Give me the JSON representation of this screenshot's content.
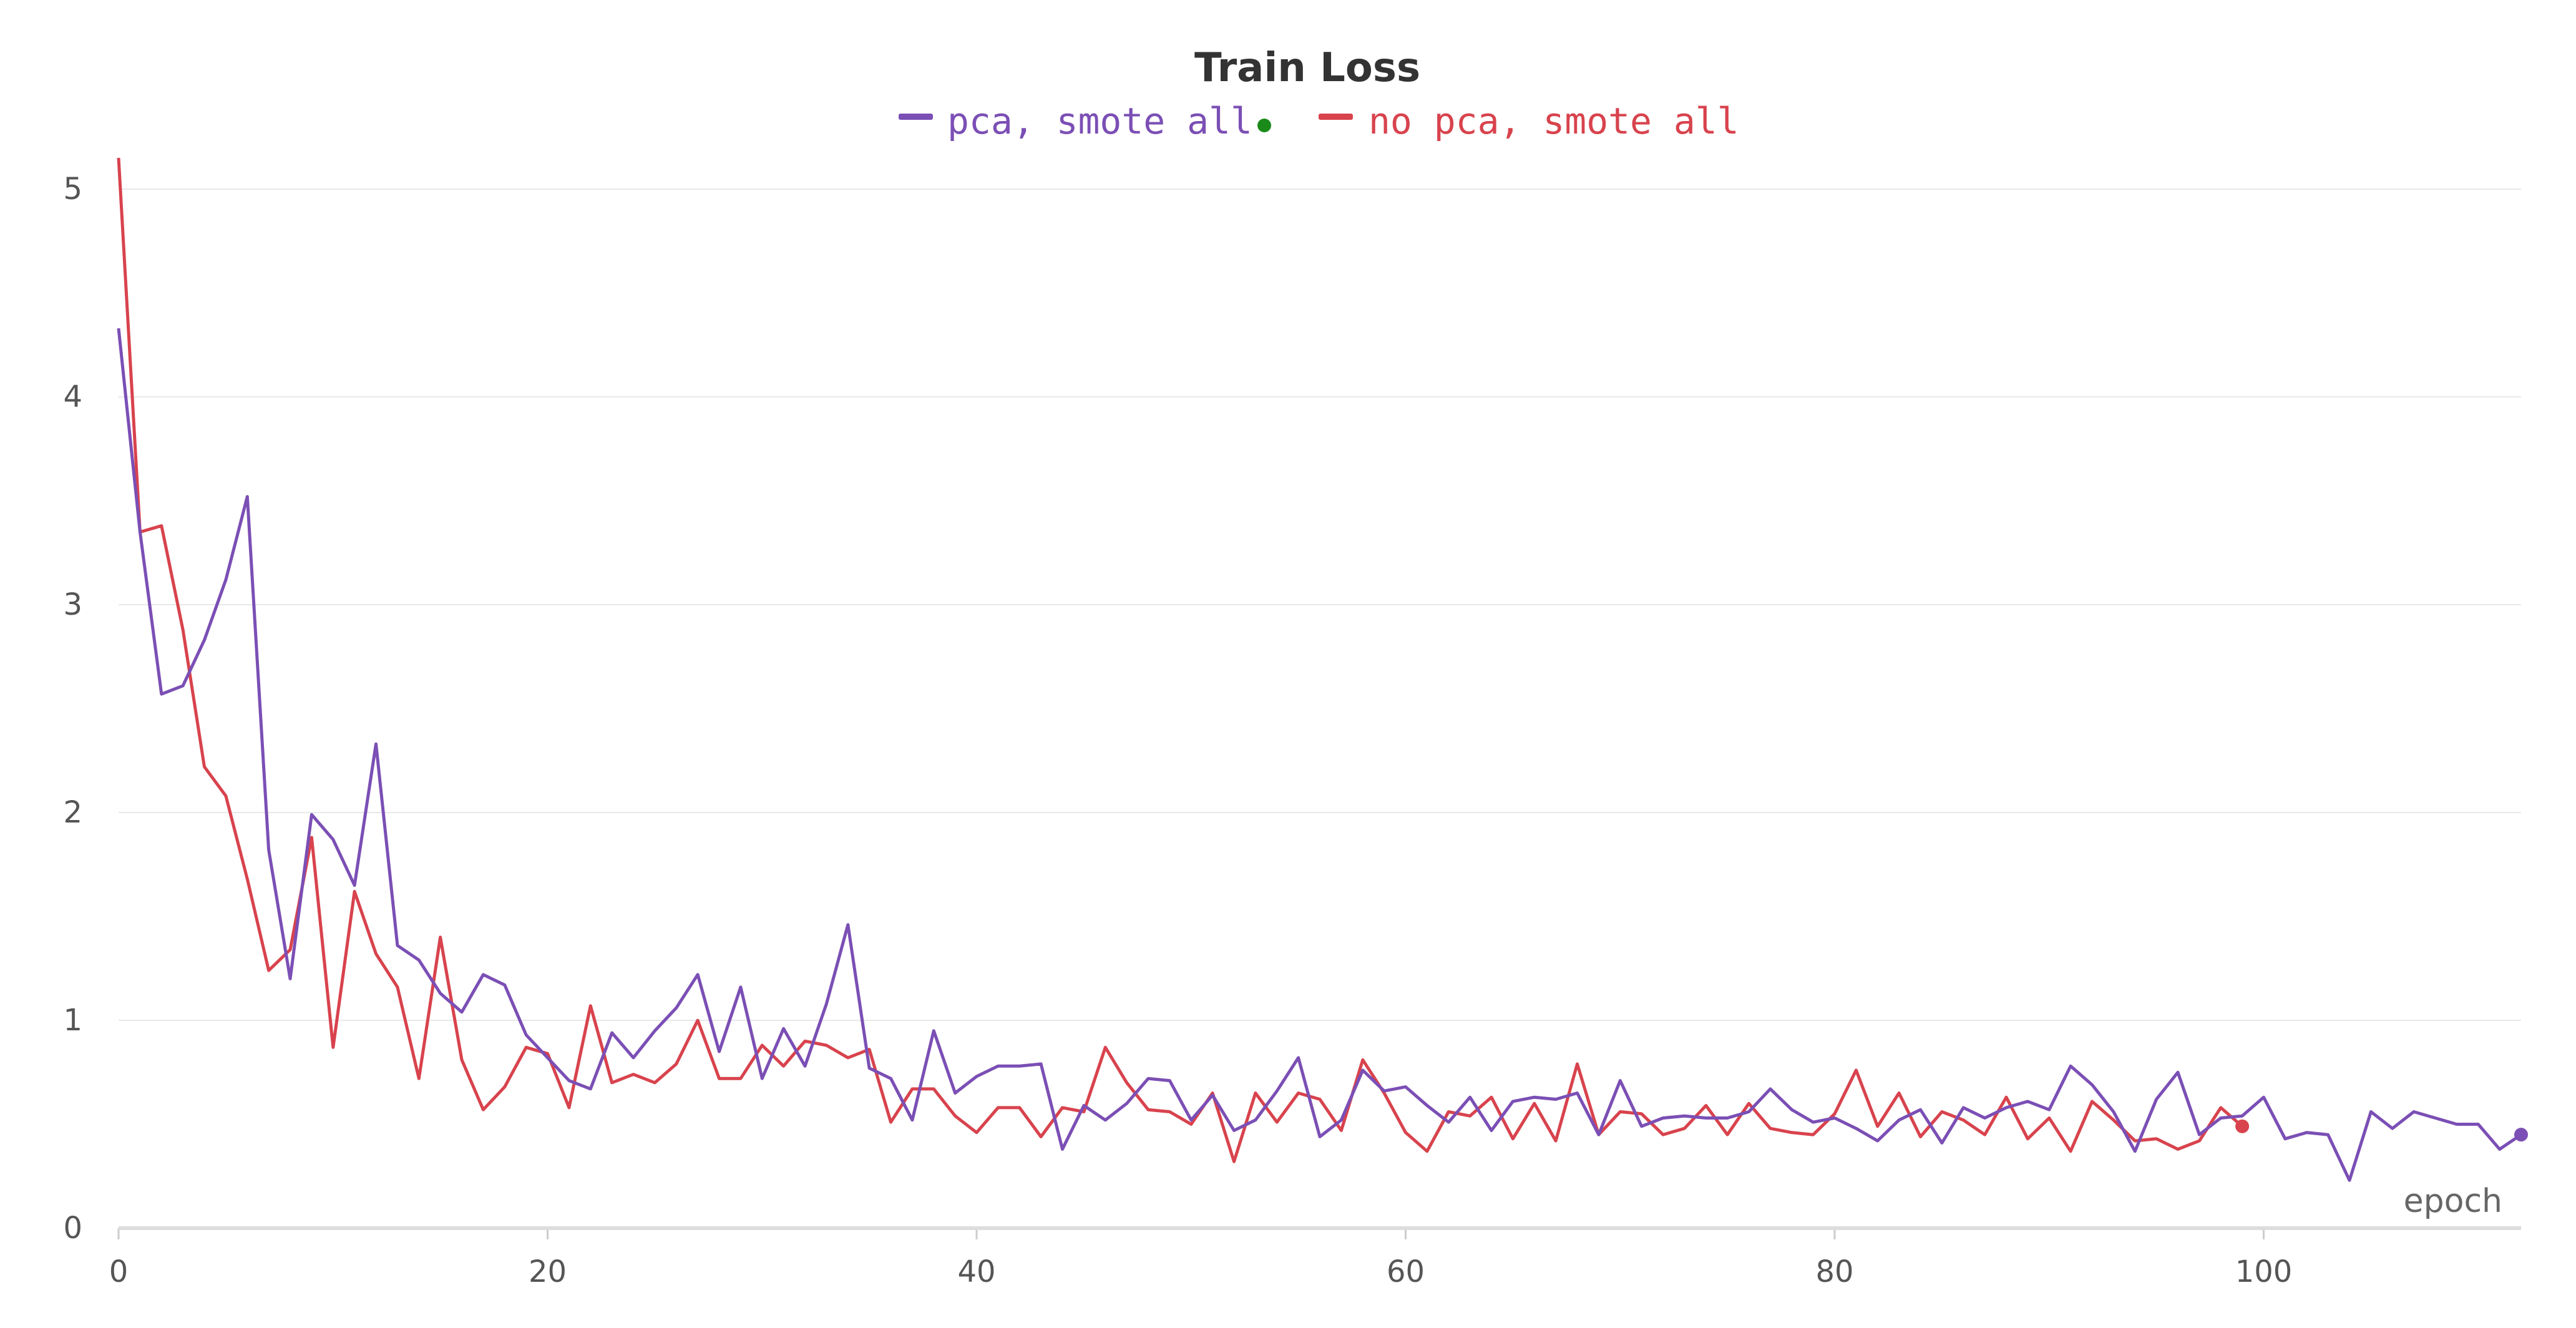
{
  "chart_data": {
    "type": "line",
    "title": "Train Loss",
    "xlabel": "epoch",
    "ylabel": "",
    "xlim": [
      0,
      112
    ],
    "ylim": [
      0,
      5.2
    ],
    "xticks": [
      0,
      20,
      40,
      60,
      80,
      100
    ],
    "yticks": [
      0,
      1,
      2,
      3,
      4,
      5
    ],
    "grid": true,
    "legend_position": "top-center",
    "legend_marker_color": "#1a8a1a",
    "series": [
      {
        "name": "pca, smote all",
        "color": "#7b4fb5",
        "x": [
          0,
          1,
          2,
          3,
          4,
          5,
          6,
          7,
          8,
          9,
          10,
          11,
          12,
          13,
          14,
          15,
          16,
          17,
          18,
          19,
          20,
          21,
          22,
          23,
          24,
          25,
          26,
          27,
          28,
          29,
          30,
          31,
          32,
          33,
          34,
          35,
          36,
          37,
          38,
          39,
          40,
          41,
          42,
          43,
          44,
          45,
          46,
          47,
          48,
          49,
          50,
          51,
          52,
          53,
          54,
          55,
          56,
          57,
          58,
          59,
          60,
          61,
          62,
          63,
          64,
          65,
          66,
          67,
          68,
          69,
          70,
          71,
          72,
          73,
          74,
          75,
          76,
          77,
          78,
          79,
          80,
          81,
          82,
          83,
          84,
          85,
          86,
          87,
          88,
          89,
          90,
          91,
          92,
          93,
          94,
          95,
          96,
          97,
          98,
          99,
          100,
          101,
          102,
          103,
          104,
          105,
          106,
          107,
          108,
          109,
          110,
          111,
          112
        ],
        "y": [
          4.33,
          3.35,
          2.57,
          2.61,
          2.83,
          3.12,
          3.52,
          1.82,
          1.2,
          1.99,
          1.87,
          1.65,
          2.33,
          1.36,
          1.29,
          1.13,
          1.04,
          1.22,
          1.17,
          0.93,
          0.82,
          0.71,
          0.67,
          0.94,
          0.82,
          0.95,
          1.06,
          1.22,
          0.85,
          1.16,
          0.72,
          0.96,
          0.78,
          1.08,
          1.46,
          0.77,
          0.72,
          0.52,
          0.95,
          0.65,
          0.73,
          0.78,
          0.78,
          0.79,
          0.38,
          0.59,
          0.52,
          0.6,
          0.72,
          0.71,
          0.52,
          0.64,
          0.47,
          0.52,
          0.66,
          0.82,
          0.44,
          0.52,
          0.76,
          0.66,
          0.68,
          0.59,
          0.51,
          0.63,
          0.47,
          0.61,
          0.63,
          0.62,
          0.65,
          0.45,
          0.71,
          0.49,
          0.53,
          0.54,
          0.53,
          0.53,
          0.56,
          0.67,
          0.57,
          0.51,
          0.53,
          0.48,
          0.42,
          0.52,
          0.57,
          0.41,
          0.58,
          0.53,
          0.58,
          0.61,
          0.57,
          0.78,
          0.69,
          0.56,
          0.37,
          0.62,
          0.75,
          0.45,
          0.53,
          0.54,
          0.63,
          0.43,
          0.46,
          0.45,
          0.23,
          0.56,
          0.48,
          0.56,
          0.53,
          0.5,
          0.5,
          0.38,
          0.45
        ]
      },
      {
        "name": "no pca, smote all",
        "color": "#d8434d",
        "x": [
          0,
          1,
          2,
          3,
          4,
          5,
          6,
          7,
          8,
          9,
          10,
          11,
          12,
          13,
          14,
          15,
          16,
          17,
          18,
          19,
          20,
          21,
          22,
          23,
          24,
          25,
          26,
          27,
          28,
          29,
          30,
          31,
          32,
          33,
          34,
          35,
          36,
          37,
          38,
          39,
          40,
          41,
          42,
          43,
          44,
          45,
          46,
          47,
          48,
          49,
          50,
          51,
          52,
          53,
          54,
          55,
          56,
          57,
          58,
          59,
          60,
          61,
          62,
          63,
          64,
          65,
          66,
          67,
          68,
          69,
          70,
          71,
          72,
          73,
          74,
          75,
          76,
          77,
          78,
          79,
          80,
          81,
          82,
          83,
          84,
          85,
          86,
          87,
          88,
          89,
          90,
          91,
          92,
          93,
          94,
          95,
          96,
          97,
          98,
          99
        ],
        "y": [
          5.15,
          3.35,
          3.38,
          2.88,
          2.22,
          2.08,
          1.68,
          1.24,
          1.34,
          1.88,
          0.87,
          1.62,
          1.32,
          1.16,
          0.72,
          1.4,
          0.81,
          0.57,
          0.68,
          0.87,
          0.84,
          0.58,
          1.07,
          0.7,
          0.74,
          0.7,
          0.79,
          1.0,
          0.72,
          0.72,
          0.88,
          0.78,
          0.9,
          0.88,
          0.82,
          0.86,
          0.51,
          0.67,
          0.67,
          0.54,
          0.46,
          0.58,
          0.58,
          0.44,
          0.58,
          0.56,
          0.87,
          0.7,
          0.57,
          0.56,
          0.5,
          0.65,
          0.32,
          0.65,
          0.51,
          0.65,
          0.62,
          0.47,
          0.81,
          0.65,
          0.46,
          0.37,
          0.56,
          0.54,
          0.63,
          0.43,
          0.6,
          0.42,
          0.79,
          0.45,
          0.56,
          0.55,
          0.45,
          0.48,
          0.59,
          0.45,
          0.6,
          0.48,
          0.46,
          0.45,
          0.55,
          0.76,
          0.49,
          0.65,
          0.44,
          0.56,
          0.52,
          0.45,
          0.63,
          0.43,
          0.53,
          0.37,
          0.61,
          0.52,
          0.42,
          0.43,
          0.38,
          0.42,
          0.58,
          0.49
        ]
      }
    ]
  }
}
